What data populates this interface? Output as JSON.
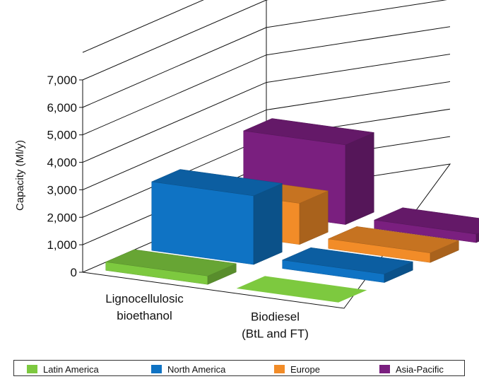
{
  "chart_data": {
    "type": "bar",
    "subtype": "3d-grouped",
    "ylabel": "Capacity (Ml/y)",
    "ylim": [
      0,
      7000
    ],
    "yticks": [
      0,
      1000,
      2000,
      3000,
      4000,
      5000,
      6000,
      7000
    ],
    "ytick_labels": [
      "0",
      "1,000",
      "2,000",
      "3,000",
      "4,000",
      "5,000",
      "6,000",
      "7,000"
    ],
    "grid": true,
    "legend_position": "bottom",
    "categories": [
      [
        "Lignocellulosic",
        "bioethanol"
      ],
      [
        "Biodiesel",
        "(BtL and FT)"
      ]
    ],
    "series": [
      {
        "name": "Latin America",
        "color": "#7dc93f",
        "values": [
          150,
          0
        ]
      },
      {
        "name": "North America",
        "color": "#0f73c4",
        "values": [
          2500,
          300
        ]
      },
      {
        "name": "Europe",
        "color": "#f28c28",
        "values": [
          1500,
          350
        ]
      },
      {
        "name": "Asia-Pacific",
        "color": "#7a1f7f",
        "values": [
          2900,
          300
        ]
      }
    ]
  }
}
